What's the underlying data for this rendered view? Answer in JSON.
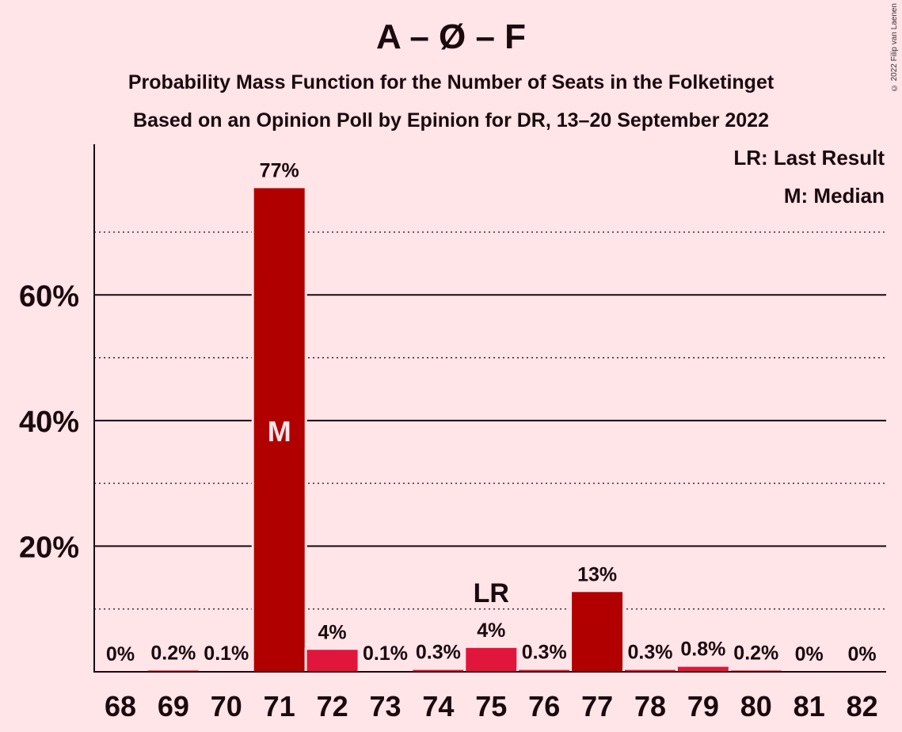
{
  "title": "A – Ø – F",
  "subtitle_line1": "Probability Mass Function for the Number of Seats in the Folketinget",
  "subtitle_line2": "Based on an Opinion Poll by Epinion for DR, 13–20 September 2022",
  "copyright": "© 2022 Filip van Laenen",
  "legend": {
    "last_result": "LR: Last Result",
    "median": "M: Median"
  },
  "colors": {
    "background": "#FFE4E8",
    "bar_dark": "#B00000",
    "bar_light": "#E0163C",
    "text": "#1a0a0e"
  },
  "chart_data": {
    "type": "bar",
    "categories": [
      "68",
      "69",
      "70",
      "71",
      "72",
      "73",
      "74",
      "75",
      "76",
      "77",
      "78",
      "79",
      "80",
      "81",
      "82"
    ],
    "values": [
      0,
      0.2,
      0.1,
      77,
      3.5,
      0.1,
      0.3,
      3.8,
      0.3,
      12.7,
      0.3,
      0.8,
      0.2,
      0,
      0
    ],
    "data_labels": [
      "0%",
      "0.2%",
      "0.1%",
      "77%",
      "4%",
      "0.1%",
      "0.3%",
      "4%",
      "0.3%",
      "13%",
      "0.3%",
      "0.8%",
      "0.2%",
      "0%",
      "0%"
    ],
    "bar_shade": [
      "dark",
      "light",
      "dark",
      "dark",
      "light",
      "dark",
      "light",
      "light",
      "light",
      "dark",
      "light",
      "light",
      "light",
      "dark",
      "light"
    ],
    "yticks": [
      20,
      40,
      60
    ],
    "ytick_labels": [
      "20%",
      "40%",
      "60%"
    ],
    "minor_gridlines": [
      10,
      30,
      50,
      70
    ],
    "ylim": [
      0,
      84
    ],
    "median_category": "71",
    "median_label": "M",
    "last_result_category": "75",
    "last_result_label": "LR"
  }
}
